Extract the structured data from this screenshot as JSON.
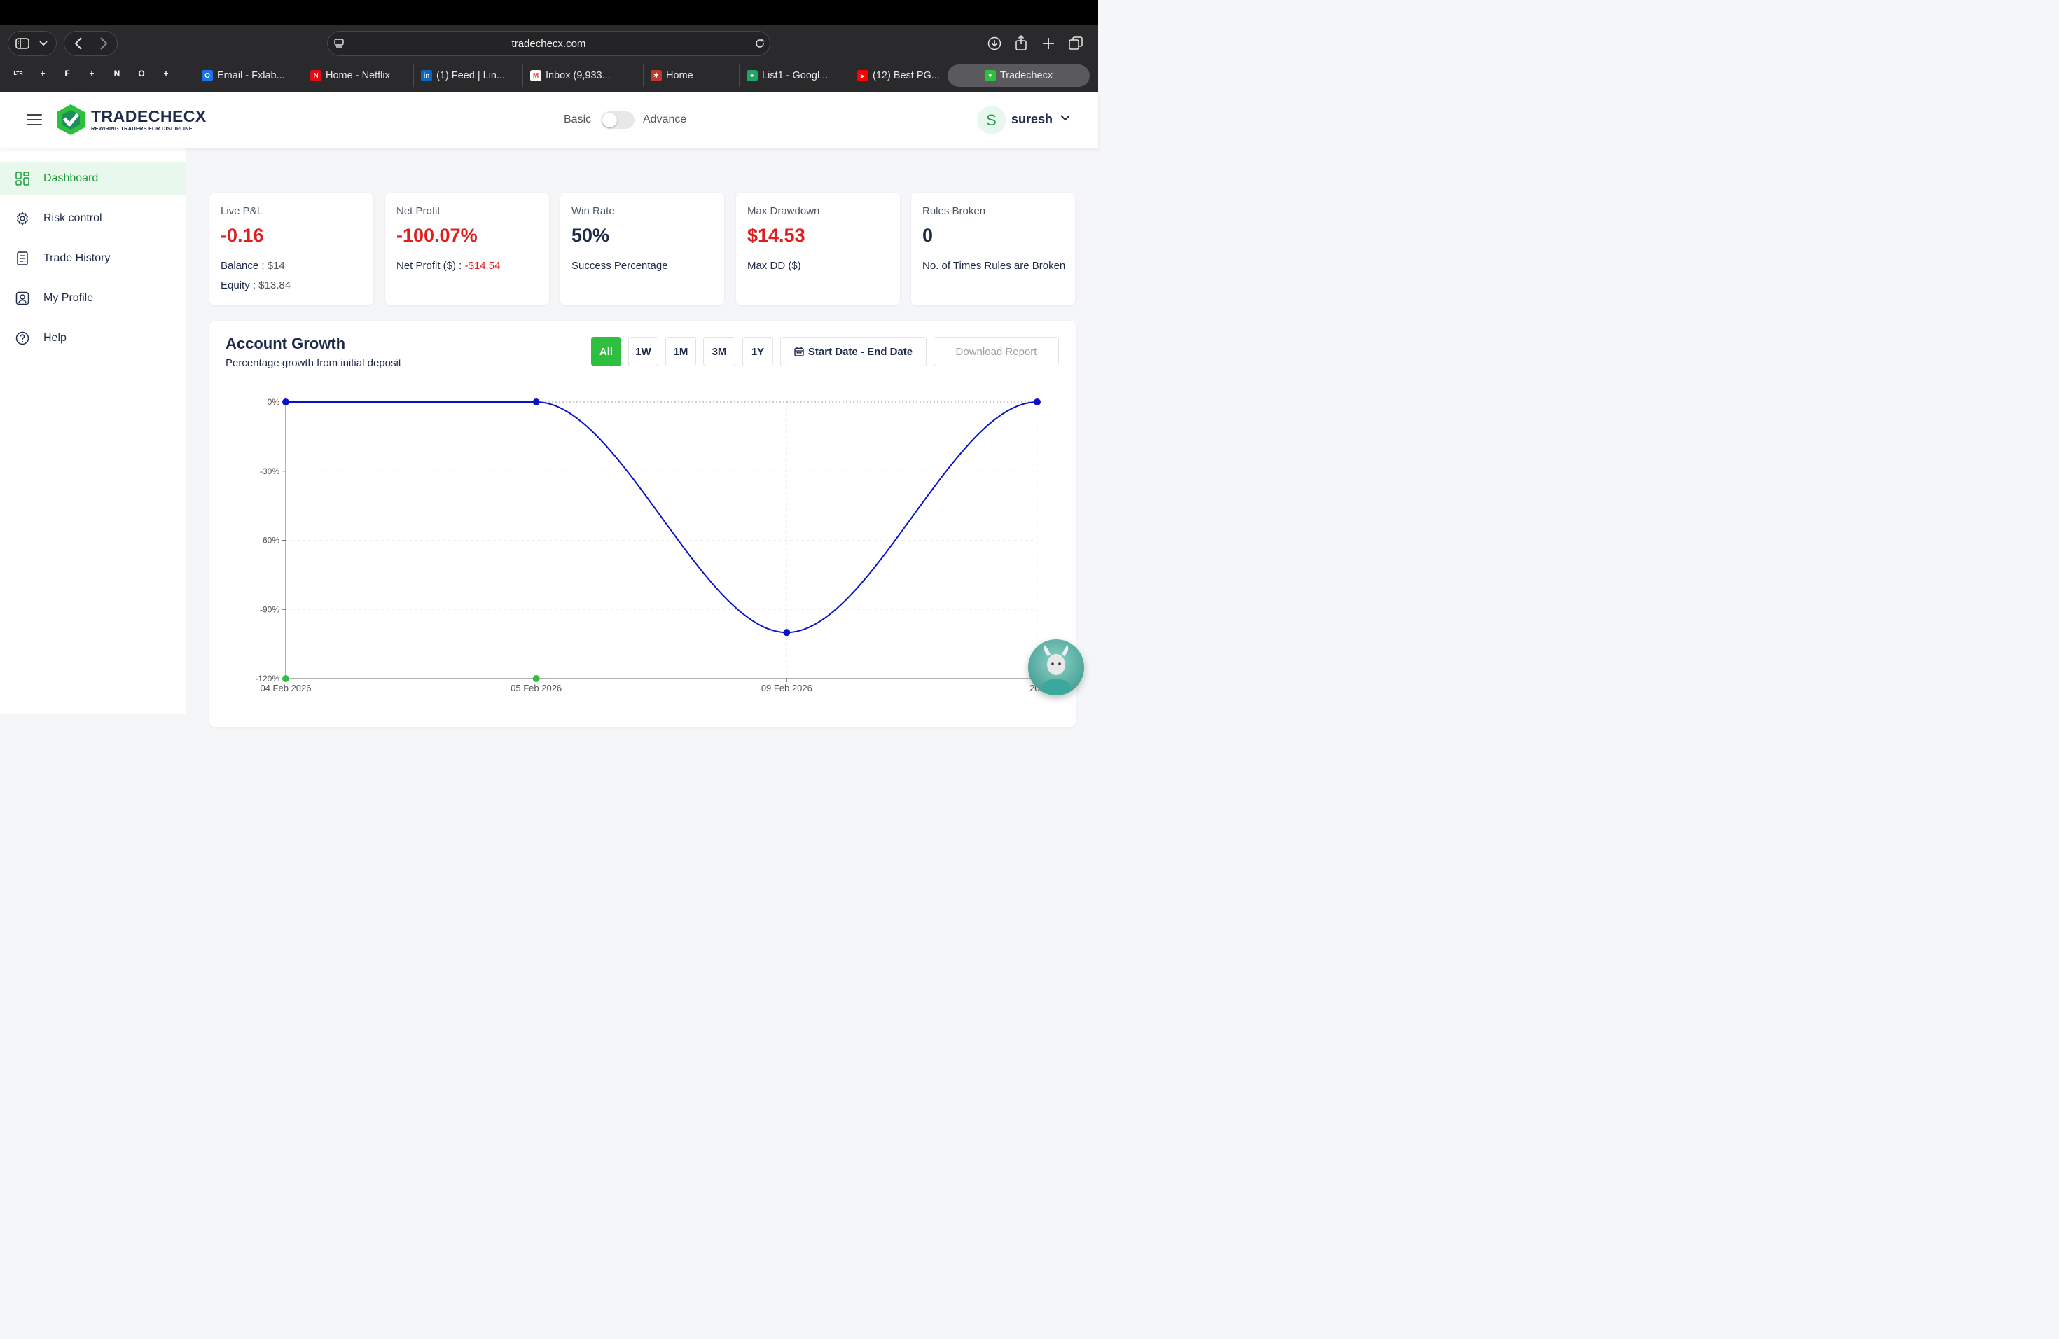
{
  "browser": {
    "url": "tradechecx.com",
    "pinned_tabs": [
      {
        "icon": "ltr-icon",
        "color": "#c9a227",
        "glyph": "LTR"
      },
      {
        "icon": "sheets-icon",
        "color": "#1fa463",
        "glyph": "+"
      },
      {
        "icon": "framer-icon",
        "color": "#3b3b6d",
        "glyph": "F"
      },
      {
        "icon": "sheets-icon",
        "color": "#1fa463",
        "glyph": "+"
      },
      {
        "icon": "notion-icon",
        "color": "#555555",
        "glyph": "N"
      },
      {
        "icon": "outlook-icon",
        "color": "#1a73e8",
        "glyph": "O"
      },
      {
        "icon": "sheets-icon",
        "color": "#1fa463",
        "glyph": "+"
      }
    ],
    "tabs": [
      {
        "label": "Email - Fxlab...",
        "icon": "outlook-icon",
        "color": "#1a73e8",
        "glyph": "O"
      },
      {
        "label": "Home - Netflix",
        "icon": "netflix-icon",
        "color": "#e50914",
        "glyph": "N"
      },
      {
        "label": "(1) Feed | Lin...",
        "icon": "linkedin-icon",
        "color": "#0a66c2",
        "glyph": "in"
      },
      {
        "label": "Inbox (9,933...",
        "icon": "gmail-icon",
        "color": "#ea4335",
        "glyph": "M"
      },
      {
        "label": "Home",
        "icon": "app-icon",
        "color": "#c0392b",
        "glyph": "✱"
      },
      {
        "label": "List1 - Googl...",
        "icon": "sheets-icon",
        "color": "#1fa463",
        "glyph": "+"
      },
      {
        "label": "(12) Best PG...",
        "icon": "youtube-icon",
        "color": "#ff0000",
        "glyph": "▶"
      },
      {
        "label": "Tradechecx",
        "icon": "tradechecx-icon",
        "color": "#2fbf3f",
        "glyph": "▼"
      }
    ]
  },
  "header": {
    "brand": "TRADECHECX",
    "tagline": "REWIRING TRADERS FOR DISCIPLINE",
    "mode_basic": "Basic",
    "mode_advance": "Advance",
    "avatar_letter": "S",
    "username": "suresh"
  },
  "sidebar": {
    "items": [
      {
        "label": "Dashboard",
        "icon": "grid-icon",
        "active": true
      },
      {
        "label": "Risk control",
        "icon": "gear-icon"
      },
      {
        "label": "Trade History",
        "icon": "document-icon"
      },
      {
        "label": "My Profile",
        "icon": "user-icon"
      },
      {
        "label": "Help",
        "icon": "help-icon"
      }
    ]
  },
  "stats": {
    "live_pnl": {
      "title": "Live P&L",
      "value": "-0.16",
      "balance_label": "Balance :",
      "balance": "$14",
      "equity_label": "Equity :",
      "equity": "$13.84"
    },
    "net_profit": {
      "title": "Net Profit",
      "value": "-100.07%",
      "sub_label": "Net Profit ($) :",
      "sub_value": "-$14.54"
    },
    "win_rate": {
      "title": "Win Rate",
      "value": "50%",
      "sub": "Success Percentage"
    },
    "max_drawdown": {
      "title": "Max Drawdown",
      "value": "$14.53",
      "sub": "Max DD ($)"
    },
    "rules_broken": {
      "title": "Rules Broken",
      "value": "0",
      "sub": "No. of Times Rules are Broken"
    }
  },
  "growth": {
    "title": "Account Growth",
    "subtitle": "Percentage growth from initial deposit",
    "ranges": [
      "All",
      "1W",
      "1M",
      "3M",
      "1Y"
    ],
    "active_range": "All",
    "date_range_label": "Start Date - End Date",
    "download_label": "Download Report"
  },
  "chart_data": {
    "type": "line",
    "title": "Account Growth",
    "x": [
      "04 Feb 2026",
      "05 Feb 2026",
      "09 Feb 2026",
      "20..."
    ],
    "x_tick_labels": [
      "04 Feb 2026",
      "05 Feb 2026",
      "09 Feb 2026",
      "202"
    ],
    "y_tick_labels": [
      "0%",
      "-30%",
      "-60%",
      "-90%",
      "-120%"
    ],
    "y_ticks": [
      0,
      -30,
      -60,
      -90,
      -120
    ],
    "ylim": [
      -120,
      0
    ],
    "series": [
      {
        "values": [
          0,
          0,
          -100,
          0
        ],
        "color": "#0a12c8"
      }
    ],
    "green_markers_x_index": [
      0,
      1
    ],
    "grid": true
  }
}
